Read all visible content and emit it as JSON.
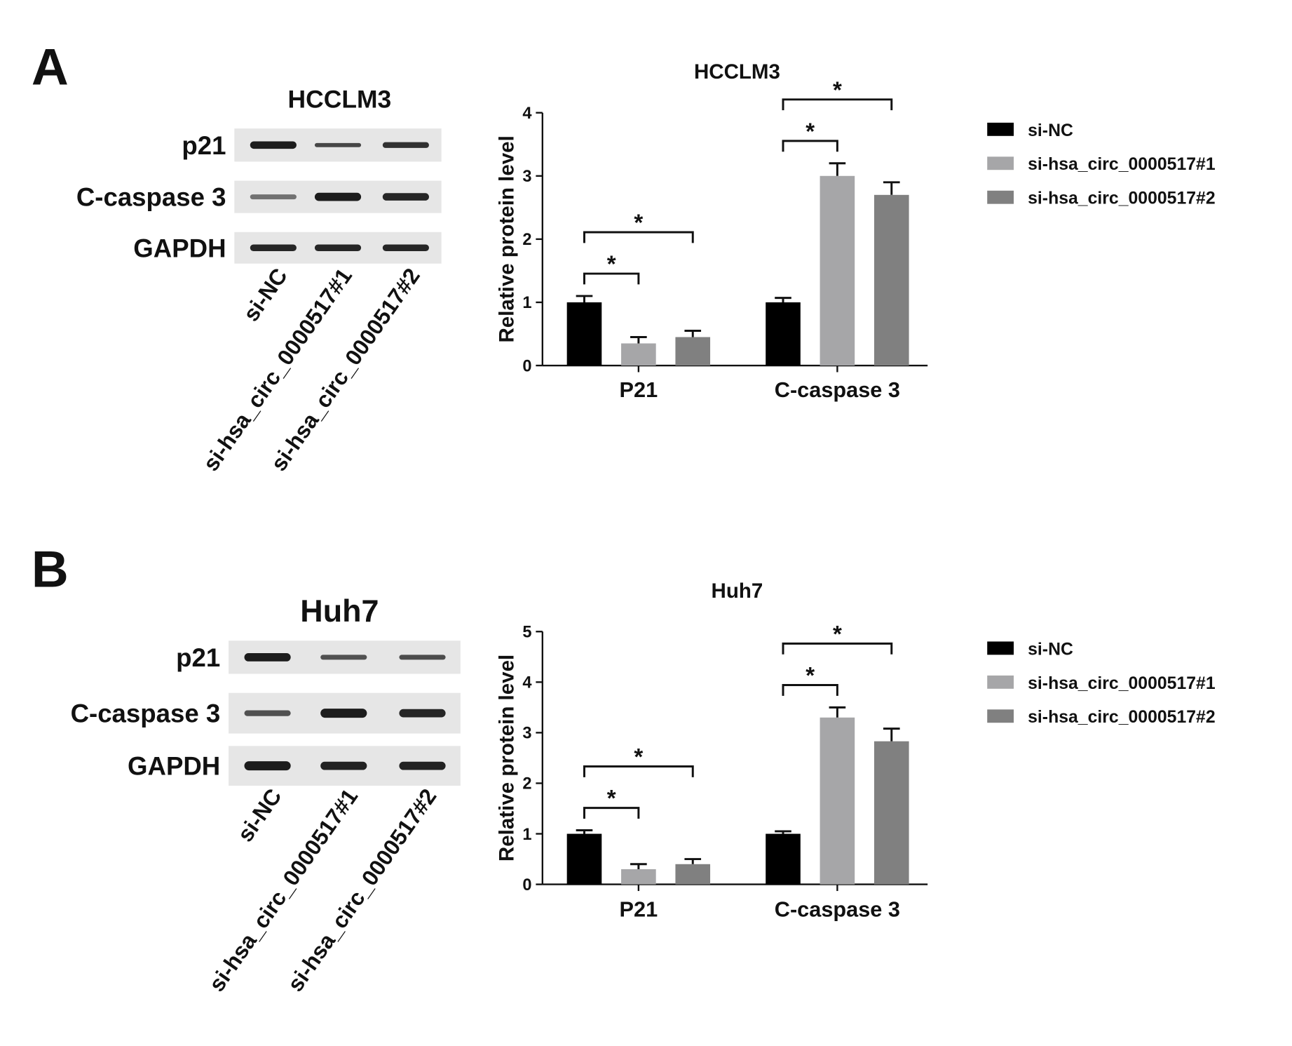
{
  "panels": [
    {
      "letter": "A",
      "blot": {
        "title": "HCCLM3",
        "rows": [
          "p21",
          "C-caspase 3",
          "GAPDH"
        ],
        "lanes": [
          "si-NC",
          "si-hsa_circ_0000517#1",
          "si-hsa_circ_0000517#2"
        ]
      }
    },
    {
      "letter": "B",
      "blot": {
        "title": "Huh7",
        "rows": [
          "p21",
          "C-caspase 3",
          "GAPDH"
        ],
        "lanes": [
          "si-NC",
          "si-hsa_circ_0000517#1",
          "si-hsa_circ_0000517#2"
        ]
      }
    }
  ],
  "chart_data": [
    {
      "type": "bar",
      "title": "HCCLM3",
      "y_label": "Relative protein level",
      "categories": [
        "P21",
        "C-caspase 3"
      ],
      "series": [
        {
          "name": "si-NC",
          "color": "#000000",
          "values": [
            1,
            1
          ],
          "errors": [
            0.1,
            0.07
          ]
        },
        {
          "name": "si-hsa_circ_0000517#1",
          "color": "#a6a6a8",
          "values": [
            0.35,
            3
          ],
          "errors": [
            0.1,
            0.2
          ]
        },
        {
          "name": "si-hsa_circ_0000517#2",
          "color": "#808080",
          "values": [
            0.45,
            2.7
          ],
          "errors": [
            0.1,
            0.2
          ]
        }
      ],
      "ylim": [
        0,
        4
      ],
      "yticks": [
        0,
        1,
        2,
        3,
        4
      ],
      "legend": "right",
      "significance": [
        {
          "category": 0,
          "pair": [
            0,
            1
          ],
          "label": "*"
        },
        {
          "category": 0,
          "pair": [
            0,
            2
          ],
          "label": "*"
        },
        {
          "category": 1,
          "pair": [
            0,
            1
          ],
          "label": "*"
        },
        {
          "category": 1,
          "pair": [
            0,
            2
          ],
          "label": "*"
        }
      ]
    },
    {
      "type": "bar",
      "title": "Huh7",
      "y_label": "Relative protein level",
      "categories": [
        "P21",
        "C-caspase 3"
      ],
      "series": [
        {
          "name": "si-NC",
          "color": "#000000",
          "values": [
            1,
            1
          ],
          "errors": [
            0.07,
            0.05
          ]
        },
        {
          "name": "si-hsa_circ_0000517#1",
          "color": "#a6a6a8",
          "values": [
            0.3,
            3.3
          ],
          "errors": [
            0.1,
            0.2
          ]
        },
        {
          "name": "si-hsa_circ_0000517#2",
          "color": "#808080",
          "values": [
            0.4,
            2.83
          ],
          "errors": [
            0.1,
            0.25
          ]
        }
      ],
      "ylim": [
        0,
        5
      ],
      "yticks": [
        0,
        1,
        2,
        3,
        4,
        5
      ],
      "legend": "right",
      "significance": [
        {
          "category": 0,
          "pair": [
            0,
            1
          ],
          "label": "*"
        },
        {
          "category": 0,
          "pair": [
            0,
            2
          ],
          "label": "*"
        },
        {
          "category": 1,
          "pair": [
            0,
            1
          ],
          "label": "*"
        },
        {
          "category": 1,
          "pair": [
            0,
            2
          ],
          "label": "*"
        }
      ]
    }
  ]
}
